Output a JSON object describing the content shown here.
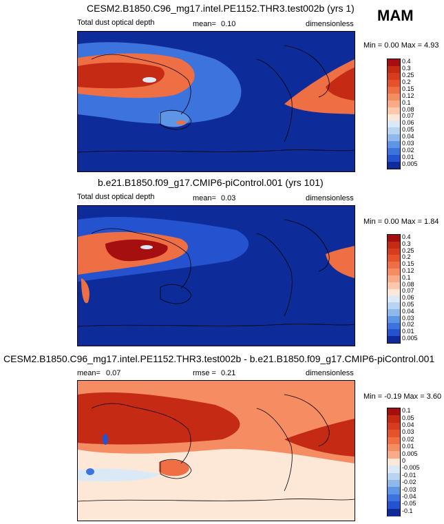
{
  "season": "MAM",
  "chart_data": [
    {
      "type": "heatmap",
      "title": "CESM2.B1850.C96_mg17.intel.PE1152.THR3.test002b (yrs 1)",
      "left_label": "Total dust optical depth",
      "stat_label": "mean=",
      "stat_value": "0.10",
      "units": "dimensionless",
      "minmax": "Min =  0.00 Max =  4.93",
      "levels": [
        "0.4",
        "0.3",
        "0.25",
        "0.2",
        "0.15",
        "0.12",
        "0.1",
        "0.08",
        "0.07",
        "0.06",
        "0.05",
        "0.04",
        "0.03",
        "0.02",
        "0.01",
        "0.005"
      ],
      "colors": [
        "#a50f0f",
        "#c52a14",
        "#d83c1e",
        "#e5532c",
        "#ee6f44",
        "#f58c62",
        "#f9ab88",
        "#fcc9ad",
        "#fde8d8",
        "#dbe9f7",
        "#b9d4f1",
        "#8fb8ec",
        "#5f95e6",
        "#3d73dd",
        "#2553cf",
        "#0d2c99"
      ]
    },
    {
      "type": "heatmap",
      "title": "b.e21.B1850.f09_g17.CMIP6-piControl.001 (yrs 101)",
      "left_label": "Total dust optical depth",
      "stat_label": "mean=",
      "stat_value": "0.03",
      "units": "dimensionless",
      "minmax": "Min =  0.00 Max =  1.84",
      "levels": [
        "0.4",
        "0.3",
        "0.25",
        "0.2",
        "0.15",
        "0.12",
        "0.1",
        "0.08",
        "0.07",
        "0.06",
        "0.05",
        "0.04",
        "0.03",
        "0.02",
        "0.01",
        "0.005"
      ],
      "colors": [
        "#a50f0f",
        "#c52a14",
        "#d83c1e",
        "#e5532c",
        "#ee6f44",
        "#f58c62",
        "#f9ab88",
        "#fcc9ad",
        "#fde8d8",
        "#dbe9f7",
        "#b9d4f1",
        "#8fb8ec",
        "#5f95e6",
        "#3d73dd",
        "#2553cf",
        "#0d2c99"
      ]
    },
    {
      "type": "heatmap",
      "title": "CESM2.B1850.C96_mg17.intel.PE1152.THR3.test002b - b.e21.B1850.f09_g17.CMIP6-piControl.001",
      "mean_label": "mean=",
      "mean_value": "0.07",
      "rmse_label": "rmse =",
      "rmse_value": "0.21",
      "units": "dimensionless",
      "minmax": "Min = -0.19 Max =  3.60",
      "levels": [
        "0.1",
        "0.05",
        "0.04",
        "0.03",
        "0.02",
        "0.01",
        "0.005",
        "0",
        "-0.005",
        "-0.01",
        "-0.02",
        "-0.03",
        "-0.04",
        "-0.05",
        "-0.1"
      ],
      "colors": [
        "#a50f0f",
        "#c52a14",
        "#d83c1e",
        "#e5532c",
        "#ee6f44",
        "#f58c62",
        "#f9ab88",
        "#fde8d8",
        "#dbe9f7",
        "#b9d4f1",
        "#8fb8ec",
        "#5f95e6",
        "#3d73dd",
        "#2553cf",
        "#0d2c99"
      ]
    }
  ]
}
